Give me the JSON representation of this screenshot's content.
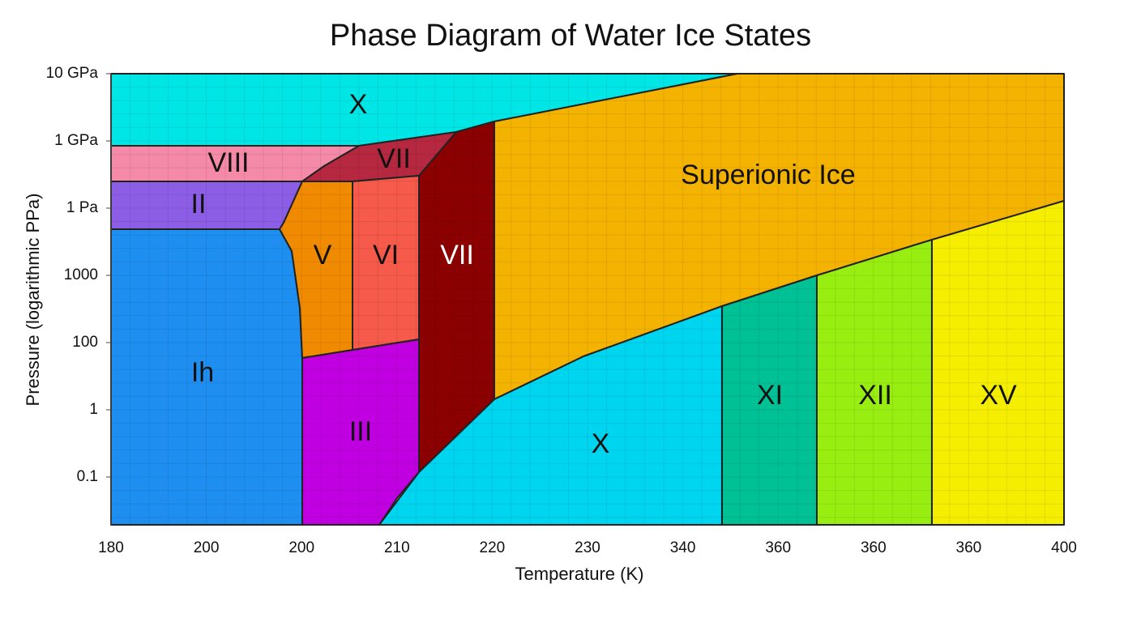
{
  "title": "Phase Diagram of Water Ice States",
  "x_axis": {
    "label": "Temperature (K)",
    "ticks": [
      "180",
      "200",
      "200",
      "210",
      "220",
      "230",
      "340",
      "360",
      "360",
      "360",
      "400"
    ]
  },
  "y_axis": {
    "label": "Pressure (logarithmic PPa)",
    "ticks": [
      "10 GPa",
      "1 GPa",
      "1 Pa",
      "1000",
      "100",
      "1",
      "0.1"
    ]
  },
  "regions": [
    "X",
    "Superionic Ice",
    "VIII",
    "VII",
    "II",
    "Ih",
    "V",
    "VI",
    "VII",
    "III",
    "X",
    "XI",
    "XII",
    "XV"
  ]
}
